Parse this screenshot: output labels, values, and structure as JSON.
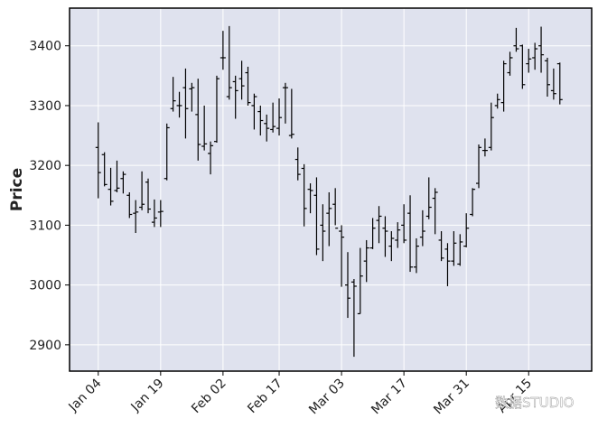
{
  "chart_data": {
    "type": "ohlc",
    "ylabel": "Price",
    "watermark": "数据STUDIO",
    "categories": [
      "Jan 04",
      null,
      null,
      null,
      null,
      null,
      null,
      null,
      null,
      null,
      "Jan 19",
      null,
      null,
      null,
      null,
      null,
      null,
      null,
      null,
      null,
      "Feb 02",
      null,
      null,
      null,
      null,
      null,
      null,
      null,
      null,
      "Feb 17",
      null,
      null,
      null,
      null,
      null,
      null,
      null,
      null,
      null,
      "Mar 03",
      null,
      null,
      null,
      null,
      null,
      null,
      null,
      null,
      null,
      "Mar 17",
      null,
      null,
      null,
      null,
      null,
      null,
      null,
      null,
      null,
      "Mar 31",
      null,
      null,
      null,
      null,
      null,
      null,
      null,
      null,
      null,
      "Apr 15",
      null,
      null,
      null,
      null,
      null
    ],
    "open": [
      3230,
      3218,
      3160,
      3158,
      3178,
      3150,
      3120,
      3130,
      3172,
      3105,
      3122,
      3178,
      3295,
      3300,
      3330,
      3328,
      3285,
      3232,
      3220,
      3240,
      3380,
      3315,
      3340,
      3345,
      3355,
      3300,
      3290,
      3270,
      3260,
      3262,
      3330,
      3250,
      3210,
      3195,
      3160,
      3150,
      3100,
      3120,
      3135,
      3090,
      3000,
      3005,
      2952,
      3040,
      3062,
      3108,
      3095,
      3065,
      3075,
      3100,
      3120,
      3030,
      3080,
      3115,
      3145,
      3075,
      3060,
      3040,
      3035,
      3065,
      3118,
      3170,
      3225,
      3230,
      3300,
      3305,
      3355,
      3400,
      3400,
      3370,
      3380,
      3400,
      3375,
      3325,
      3370
    ],
    "high": [
      3272,
      3222,
      3196,
      3208,
      3190,
      3155,
      3142,
      3190,
      3178,
      3143,
      3142,
      3270,
      3348,
      3323,
      3362,
      3338,
      3345,
      3300,
      3240,
      3350,
      3425,
      3433,
      3350,
      3375,
      3365,
      3320,
      3300,
      3285,
      3305,
      3312,
      3338,
      3328,
      3230,
      3202,
      3170,
      3180,
      3135,
      3155,
      3162,
      3100,
      3055,
      3010,
      3062,
      3075,
      3112,
      3132,
      3115,
      3090,
      3105,
      3135,
      3150,
      3078,
      3125,
      3180,
      3162,
      3090,
      3070,
      3090,
      3085,
      3120,
      3162,
      3235,
      3245,
      3305,
      3320,
      3375,
      3390,
      3430,
      3402,
      3395,
      3405,
      3432,
      3380,
      3362,
      3372
    ],
    "low": [
      3145,
      3165,
      3133,
      3155,
      3153,
      3112,
      3087,
      3125,
      3120,
      3097,
      3097,
      3175,
      3290,
      3280,
      3245,
      3290,
      3208,
      3225,
      3185,
      3238,
      3360,
      3310,
      3278,
      3310,
      3300,
      3260,
      3250,
      3240,
      3255,
      3250,
      3270,
      3245,
      3175,
      3098,
      3120,
      3050,
      3040,
      3065,
      3100,
      2997,
      2945,
      2880,
      2952,
      3005,
      3060,
      3070,
      3047,
      3040,
      3062,
      3070,
      3022,
      3020,
      3065,
      3110,
      3085,
      3040,
      2998,
      3032,
      3032,
      3063,
      3115,
      3162,
      3215,
      3225,
      3295,
      3290,
      3350,
      3390,
      3328,
      3355,
      3360,
      3355,
      3315,
      3310,
      3302
    ],
    "close": [
      3188,
      3168,
      3140,
      3162,
      3185,
      3118,
      3122,
      3135,
      3127,
      3112,
      3123,
      3263,
      3308,
      3300,
      3295,
      3330,
      3235,
      3236,
      3233,
      3345,
      3380,
      3330,
      3325,
      3333,
      3305,
      3315,
      3275,
      3262,
      3265,
      3280,
      3330,
      3252,
      3185,
      3128,
      3158,
      3060,
      3090,
      3128,
      3095,
      3080,
      2978,
      2998,
      3015,
      3062,
      3095,
      3115,
      3090,
      3078,
      3092,
      3075,
      3030,
      3065,
      3090,
      3130,
      3155,
      3045,
      3040,
      3070,
      3072,
      3095,
      3160,
      3230,
      3225,
      3280,
      3310,
      3370,
      3380,
      3395,
      3335,
      3378,
      3395,
      3385,
      3335,
      3320,
      3310
    ],
    "color": "#000000",
    "background": "#dfe2ee",
    "xlim": [
      -4.6,
      79.1
    ],
    "ylim": [
      2856,
      3463
    ],
    "yticks": [
      2900,
      3000,
      3100,
      3200,
      3300,
      3400
    ],
    "grid": true
  }
}
